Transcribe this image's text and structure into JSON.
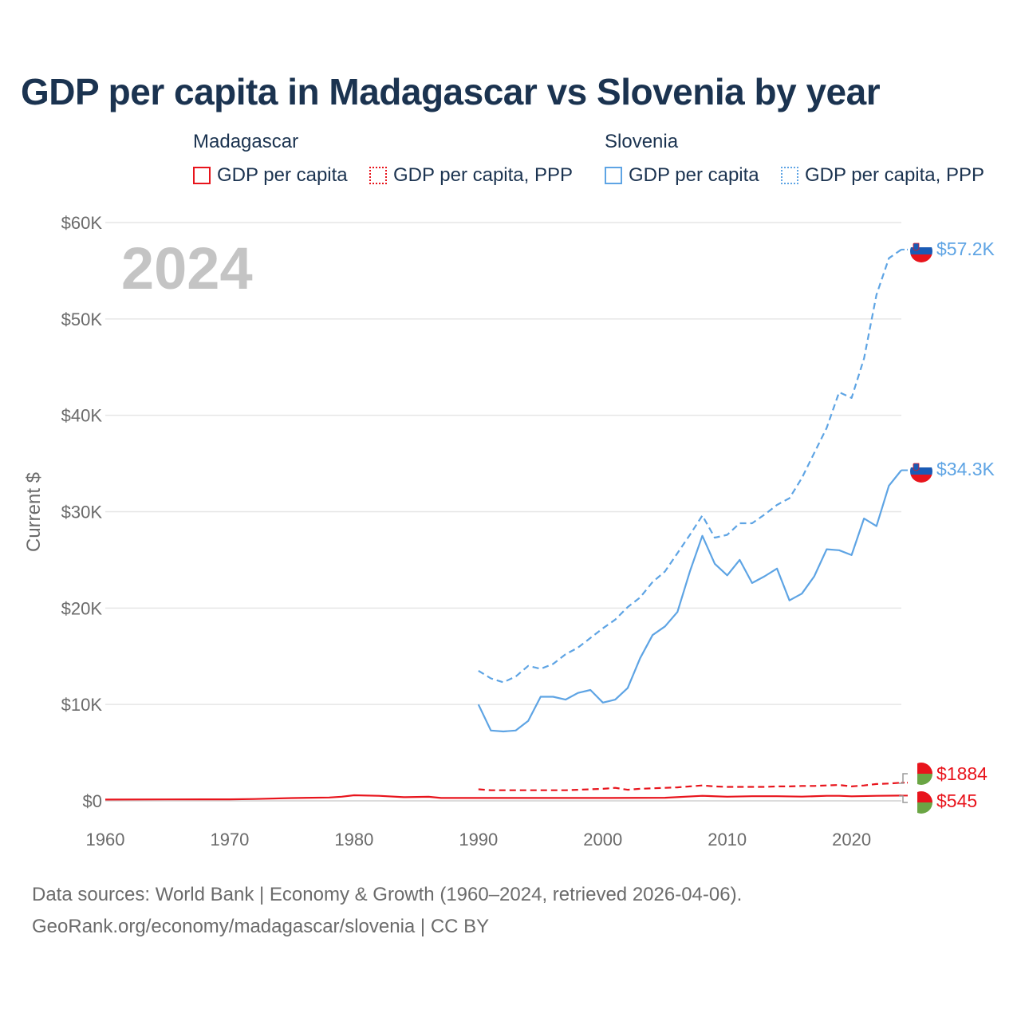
{
  "title": "GDP per capita in Madagascar vs Slovenia by year",
  "legend": {
    "groups": [
      {
        "country": "Madagascar",
        "items": [
          "GDP per capita",
          "GDP per capita, PPP"
        ]
      },
      {
        "country": "Slovenia",
        "items": [
          "GDP per capita",
          "GDP per capita, PPP"
        ]
      }
    ]
  },
  "footer": {
    "line1": "Data sources: World Bank | Economy & Growth (1960–2024, retrieved 2026-04-06).",
    "line2": "GeoRank.org/economy/madagascar/slovenia | CC BY"
  },
  "colors": {
    "madagascar": "#e8141c",
    "slovenia": "#5ea4e4",
    "grid": "#e6e6e6",
    "axis_text": "#6b6b6b",
    "year_watermark": "#c4c4c4"
  },
  "chart_data": {
    "type": "line",
    "title": "GDP per capita in Madagascar vs Slovenia by year",
    "ylabel": "Current $",
    "xlabel": "",
    "xlim": [
      1960,
      2024
    ],
    "ylim": [
      0,
      60000
    ],
    "x_ticks": [
      1960,
      1970,
      1980,
      1990,
      2000,
      2010,
      2020
    ],
    "x_tick_labels": [
      "1960",
      "1970",
      "1980",
      "1990",
      "2000",
      "2010",
      "2020"
    ],
    "y_ticks": [
      0,
      10000,
      20000,
      30000,
      40000,
      50000,
      60000
    ],
    "y_tick_labels": [
      "$0",
      "$10K",
      "$20K",
      "$30K",
      "$40K",
      "$50K",
      "$60K"
    ],
    "year_label": "2024",
    "grid": true,
    "series": [
      {
        "name": "Slovenia GDP per capita, PPP",
        "country": "Slovenia",
        "style": "dashed",
        "color": "#5ea4e4",
        "end_label": "$57.2K",
        "points": [
          [
            1990,
            13500
          ],
          [
            1991,
            12700
          ],
          [
            1992,
            12300
          ],
          [
            1993,
            12900
          ],
          [
            1994,
            14000
          ],
          [
            1995,
            13700
          ],
          [
            1996,
            14200
          ],
          [
            1997,
            15200
          ],
          [
            1998,
            15900
          ],
          [
            1999,
            16900
          ],
          [
            2000,
            17900
          ],
          [
            2001,
            18800
          ],
          [
            2002,
            20100
          ],
          [
            2003,
            21100
          ],
          [
            2004,
            22700
          ],
          [
            2005,
            23800
          ],
          [
            2006,
            25700
          ],
          [
            2007,
            27600
          ],
          [
            2008,
            29600
          ],
          [
            2009,
            27300
          ],
          [
            2010,
            27600
          ],
          [
            2011,
            28800
          ],
          [
            2012,
            28800
          ],
          [
            2013,
            29700
          ],
          [
            2014,
            30700
          ],
          [
            2015,
            31400
          ],
          [
            2016,
            33500
          ],
          [
            2017,
            36100
          ],
          [
            2018,
            38700
          ],
          [
            2019,
            42400
          ],
          [
            2020,
            41800
          ],
          [
            2021,
            45900
          ],
          [
            2022,
            52500
          ],
          [
            2023,
            56300
          ],
          [
            2024,
            57200
          ]
        ]
      },
      {
        "name": "Slovenia GDP per capita",
        "country": "Slovenia",
        "style": "solid",
        "color": "#5ea4e4",
        "end_label": "$34.3K",
        "points": [
          [
            1990,
            10000
          ],
          [
            1991,
            7300
          ],
          [
            1992,
            7200
          ],
          [
            1993,
            7300
          ],
          [
            1994,
            8300
          ],
          [
            1995,
            10800
          ],
          [
            1996,
            10800
          ],
          [
            1997,
            10500
          ],
          [
            1998,
            11200
          ],
          [
            1999,
            11500
          ],
          [
            2000,
            10200
          ],
          [
            2001,
            10500
          ],
          [
            2002,
            11700
          ],
          [
            2003,
            14800
          ],
          [
            2004,
            17200
          ],
          [
            2005,
            18100
          ],
          [
            2006,
            19600
          ],
          [
            2007,
            23800
          ],
          [
            2008,
            27500
          ],
          [
            2009,
            24600
          ],
          [
            2010,
            23400
          ],
          [
            2011,
            25000
          ],
          [
            2012,
            22600
          ],
          [
            2013,
            23300
          ],
          [
            2014,
            24100
          ],
          [
            2015,
            20800
          ],
          [
            2016,
            21500
          ],
          [
            2017,
            23300
          ],
          [
            2018,
            26100
          ],
          [
            2019,
            26000
          ],
          [
            2020,
            25500
          ],
          [
            2021,
            29300
          ],
          [
            2022,
            28500
          ],
          [
            2023,
            32700
          ],
          [
            2024,
            34300
          ]
        ]
      },
      {
        "name": "Madagascar GDP per capita, PPP",
        "country": "Madagascar",
        "style": "dashed",
        "color": "#e8141c",
        "end_label": "$1884",
        "points": [
          [
            1990,
            1200
          ],
          [
            1991,
            1100
          ],
          [
            1992,
            1100
          ],
          [
            1993,
            1100
          ],
          [
            1994,
            1100
          ],
          [
            1995,
            1100
          ],
          [
            1996,
            1100
          ],
          [
            1997,
            1100
          ],
          [
            1998,
            1150
          ],
          [
            1999,
            1200
          ],
          [
            2000,
            1250
          ],
          [
            2001,
            1350
          ],
          [
            2002,
            1150
          ],
          [
            2003,
            1250
          ],
          [
            2004,
            1300
          ],
          [
            2005,
            1350
          ],
          [
            2006,
            1400
          ],
          [
            2007,
            1500
          ],
          [
            2008,
            1600
          ],
          [
            2009,
            1500
          ],
          [
            2010,
            1450
          ],
          [
            2011,
            1450
          ],
          [
            2012,
            1450
          ],
          [
            2013,
            1450
          ],
          [
            2014,
            1500
          ],
          [
            2015,
            1500
          ],
          [
            2016,
            1550
          ],
          [
            2017,
            1550
          ],
          [
            2018,
            1600
          ],
          [
            2019,
            1650
          ],
          [
            2020,
            1500
          ],
          [
            2021,
            1600
          ],
          [
            2022,
            1750
          ],
          [
            2023,
            1800
          ],
          [
            2024,
            1884
          ]
        ]
      },
      {
        "name": "Madagascar GDP per capita",
        "country": "Madagascar",
        "style": "solid",
        "color": "#e8141c",
        "end_label": "$545",
        "points": [
          [
            1960,
            130
          ],
          [
            1965,
            150
          ],
          [
            1970,
            160
          ],
          [
            1972,
            190
          ],
          [
            1975,
            290
          ],
          [
            1978,
            350
          ],
          [
            1979,
            430
          ],
          [
            1980,
            580
          ],
          [
            1982,
            520
          ],
          [
            1984,
            380
          ],
          [
            1986,
            420
          ],
          [
            1987,
            300
          ],
          [
            1990,
            300
          ],
          [
            1995,
            300
          ],
          [
            2000,
            300
          ],
          [
            2005,
            320
          ],
          [
            2008,
            520
          ],
          [
            2010,
            430
          ],
          [
            2012,
            480
          ],
          [
            2014,
            480
          ],
          [
            2016,
            440
          ],
          [
            2018,
            520
          ],
          [
            2019,
            520
          ],
          [
            2020,
            470
          ],
          [
            2022,
            520
          ],
          [
            2024,
            545
          ]
        ]
      }
    ]
  }
}
